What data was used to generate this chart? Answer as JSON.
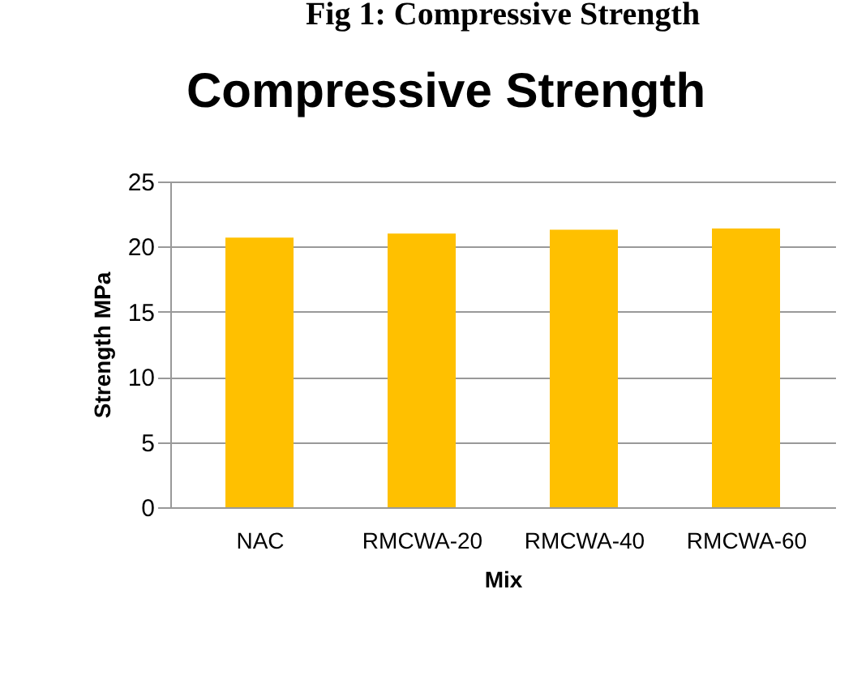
{
  "chart_data": {
    "type": "bar",
    "title": "Compressive Strength",
    "xlabel": "Mix",
    "ylabel": "Strength  MPa",
    "annotations": [
      "Fig 1: Compressive Strength"
    ],
    "categories": [
      "NAC",
      "RMCWA-20",
      "RMCWA-40",
      "RMCWA-60"
    ],
    "values": [
      20.7,
      21.0,
      21.3,
      21.4
    ],
    "color": "#ffc000",
    "ylim": [
      0,
      25
    ],
    "yticks": [
      0,
      5,
      10,
      15,
      20,
      25
    ],
    "grid": "y"
  }
}
